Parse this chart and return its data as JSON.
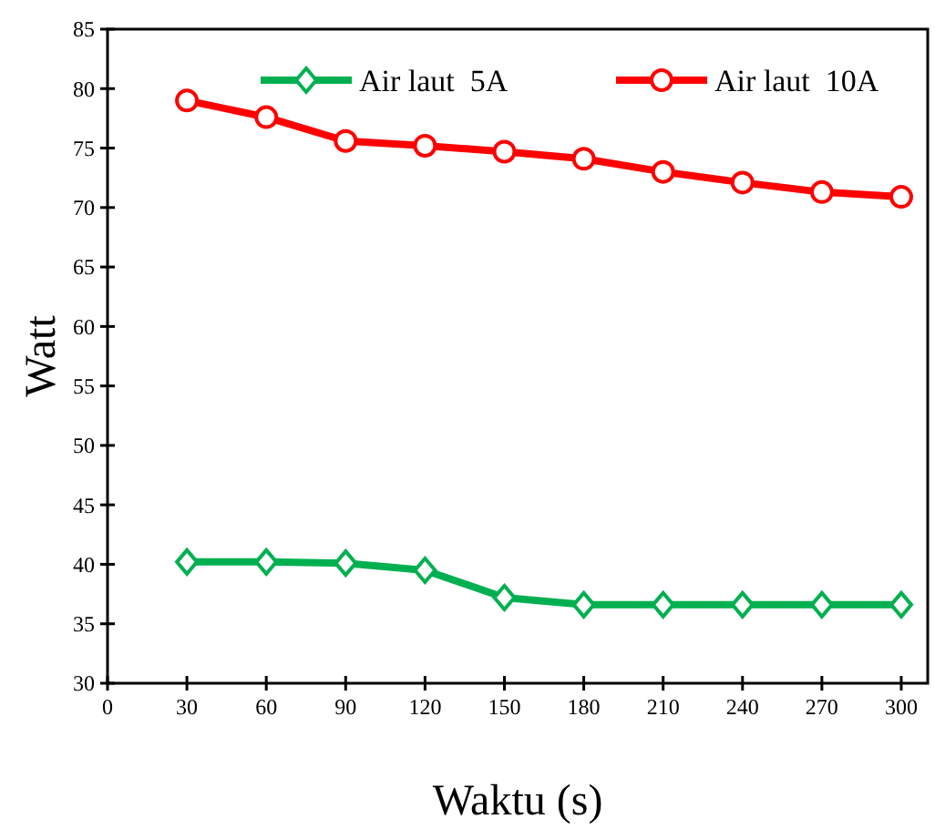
{
  "chart_data": {
    "type": "line",
    "xlabel": "Waktu (s)",
    "ylabel": "Watt",
    "x": [
      30,
      60,
      90,
      120,
      150,
      180,
      210,
      240,
      270,
      300
    ],
    "series": [
      {
        "name": "Air laut  5A",
        "color": "#00b050",
        "marker": "diamond",
        "values": [
          40.2,
          40.2,
          40.1,
          39.5,
          37.2,
          36.6,
          36.6,
          36.6,
          36.6,
          36.6
        ]
      },
      {
        "name": "Air laut  10A",
        "color": "#ff0000",
        "marker": "circle",
        "values": [
          79.0,
          77.6,
          75.6,
          75.2,
          74.7,
          74.1,
          73.0,
          72.1,
          71.3,
          70.9
        ]
      }
    ],
    "xlim": [
      0,
      310
    ],
    "xticks": [
      0,
      30,
      60,
      90,
      120,
      150,
      180,
      210,
      240,
      270,
      300
    ],
    "ylim": [
      30,
      85
    ],
    "yticks": [
      30,
      35,
      40,
      45,
      50,
      55,
      60,
      65,
      70,
      75,
      80,
      85
    ],
    "grid": false,
    "legend": "top"
  }
}
